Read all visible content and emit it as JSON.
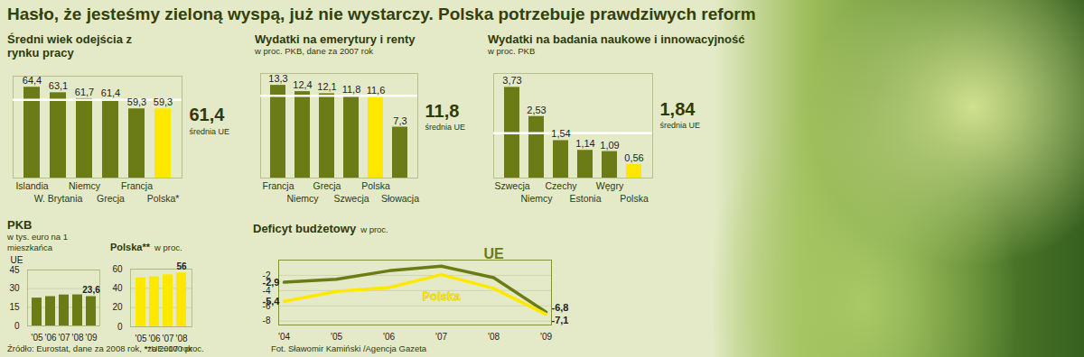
{
  "title": "Hasło, że jesteśmy zieloną wyspą, już nie wystarczy. Polska potrzebuje prawdziwych reform",
  "source": "Źródło: Eurostat, dane za 2008 rok, *za 2007 rok",
  "credit": "Fot. Sławomir Kamiński /Agencja Gazeta",
  "chart_data": [
    {
      "type": "bar",
      "title": "Średni wiek odejścia z rynku pracy",
      "categories": [
        "Islandia",
        "W. Brytania",
        "Niemcy",
        "Grecja",
        "Francja",
        "Polska*"
      ],
      "values": [
        64.4,
        63.1,
        61.7,
        61.4,
        59.3,
        59.3
      ],
      "value_labels": [
        "64,4",
        "63,1",
        "61,7",
        "61,4",
        "59,3",
        "59,3"
      ],
      "colors": [
        "#6b7b16",
        "#6b7b16",
        "#6b7b16",
        "#6b7b16",
        "#6b7b16",
        "#ffe800"
      ],
      "ylim": [
        43,
        67
      ],
      "yticks": [],
      "tick_labels": "x",
      "data_labels": true,
      "reference": {
        "value": 61.4,
        "label": "61,4",
        "text": "średnia UE"
      }
    },
    {
      "type": "bar",
      "title": "Wydatki na emerytury i renty",
      "subtitle": "w proc. PKB, dane za 2007 rok",
      "categories": [
        "Francja",
        "Niemcy",
        "Grecja",
        "Szwecja",
        "Polska",
        "Słowacja"
      ],
      "values": [
        13.3,
        12.4,
        12.1,
        11.8,
        11.6,
        7.3
      ],
      "value_labels": [
        "13,3",
        "12,4",
        "12,1",
        "11,8",
        "11,6",
        "7,3"
      ],
      "colors": [
        "#6b7b16",
        "#6b7b16",
        "#6b7b16",
        "#6b7b16",
        "#ffe800",
        "#6b7b16"
      ],
      "ylim": [
        0,
        15
      ],
      "yticks": [],
      "tick_labels": "x",
      "data_labels": true,
      "reference": {
        "value": 11.8,
        "label": "11,8",
        "text": "średnia UE"
      }
    },
    {
      "type": "bar",
      "title": "Wydatki na badania naukowe i innowacyjność",
      "subtitle": "w proc. PKB",
      "categories": [
        "Szwecja",
        "Niemcy",
        "Czechy",
        "Estonia",
        "Węgry",
        "Polska"
      ],
      "values": [
        3.73,
        2.53,
        1.54,
        1.14,
        1.09,
        0.56
      ],
      "value_labels": [
        "3,73",
        "2,53",
        "1,54",
        "1,14",
        "1,09",
        "0,56"
      ],
      "colors": [
        "#6b7b16",
        "#6b7b16",
        "#6b7b16",
        "#6b7b16",
        "#6b7b16",
        "#ffe800"
      ],
      "ylim": [
        0,
        4.3
      ],
      "yticks": [],
      "tick_labels": "x",
      "data_labels": true,
      "reference": {
        "value": 1.84,
        "label": "1,84",
        "text": "średnia UE"
      }
    },
    {
      "type": "bar",
      "title": "PKB",
      "subtitle": "w tys. euro na 1 mieszkańca",
      "ylabel": "UE",
      "categories": [
        "'05",
        "'06",
        "'07",
        "'08",
        "'09"
      ],
      "values": [
        22.4,
        23.6,
        24.9,
        25.0,
        23.6
      ],
      "value_labels": [
        null,
        null,
        null,
        null,
        "23,6"
      ],
      "color": "#6b7b16",
      "ylim": [
        0,
        45
      ],
      "yticks": [
        0,
        15,
        30,
        45
      ],
      "grid": true,
      "data_labels": true
    },
    {
      "type": "bar",
      "title": "Polska**",
      "subtitle": "w proc.",
      "note": "**UE=100 proc.",
      "categories": [
        "'05",
        "'06",
        "'07",
        "'08"
      ],
      "values": [
        51,
        52,
        54,
        56
      ],
      "value_labels": [
        null,
        null,
        null,
        "56"
      ],
      "color": "#ffe800",
      "ylim": [
        0,
        60
      ],
      "yticks": [
        0,
        20,
        40,
        60
      ],
      "grid": true,
      "data_labels": true
    },
    {
      "type": "line",
      "title": "Deficyt budżetowy",
      "subtitle": "w proc.",
      "categories": [
        "'04",
        "'05",
        "'06",
        "'07",
        "'08",
        "'09"
      ],
      "series": [
        {
          "name": "UE",
          "color": "#6b7b16",
          "values": [
            -2.9,
            -2.5,
            -1.4,
            -0.8,
            -2.3,
            -6.8
          ],
          "value_labels": [
            "-2,9",
            null,
            null,
            null,
            null,
            "-6,8"
          ]
        },
        {
          "name": "Polska",
          "color": "#ffe800",
          "values": [
            -5.4,
            -4.1,
            -3.6,
            -1.9,
            -3.7,
            -7.1
          ],
          "value_labels": [
            "-5,4",
            null,
            null,
            null,
            null,
            "-7,1"
          ]
        }
      ],
      "ylim": [
        -8.5,
        0
      ],
      "yticks": [
        -8,
        -6,
        -4,
        -2
      ],
      "grid": true,
      "data_labels": true
    }
  ]
}
